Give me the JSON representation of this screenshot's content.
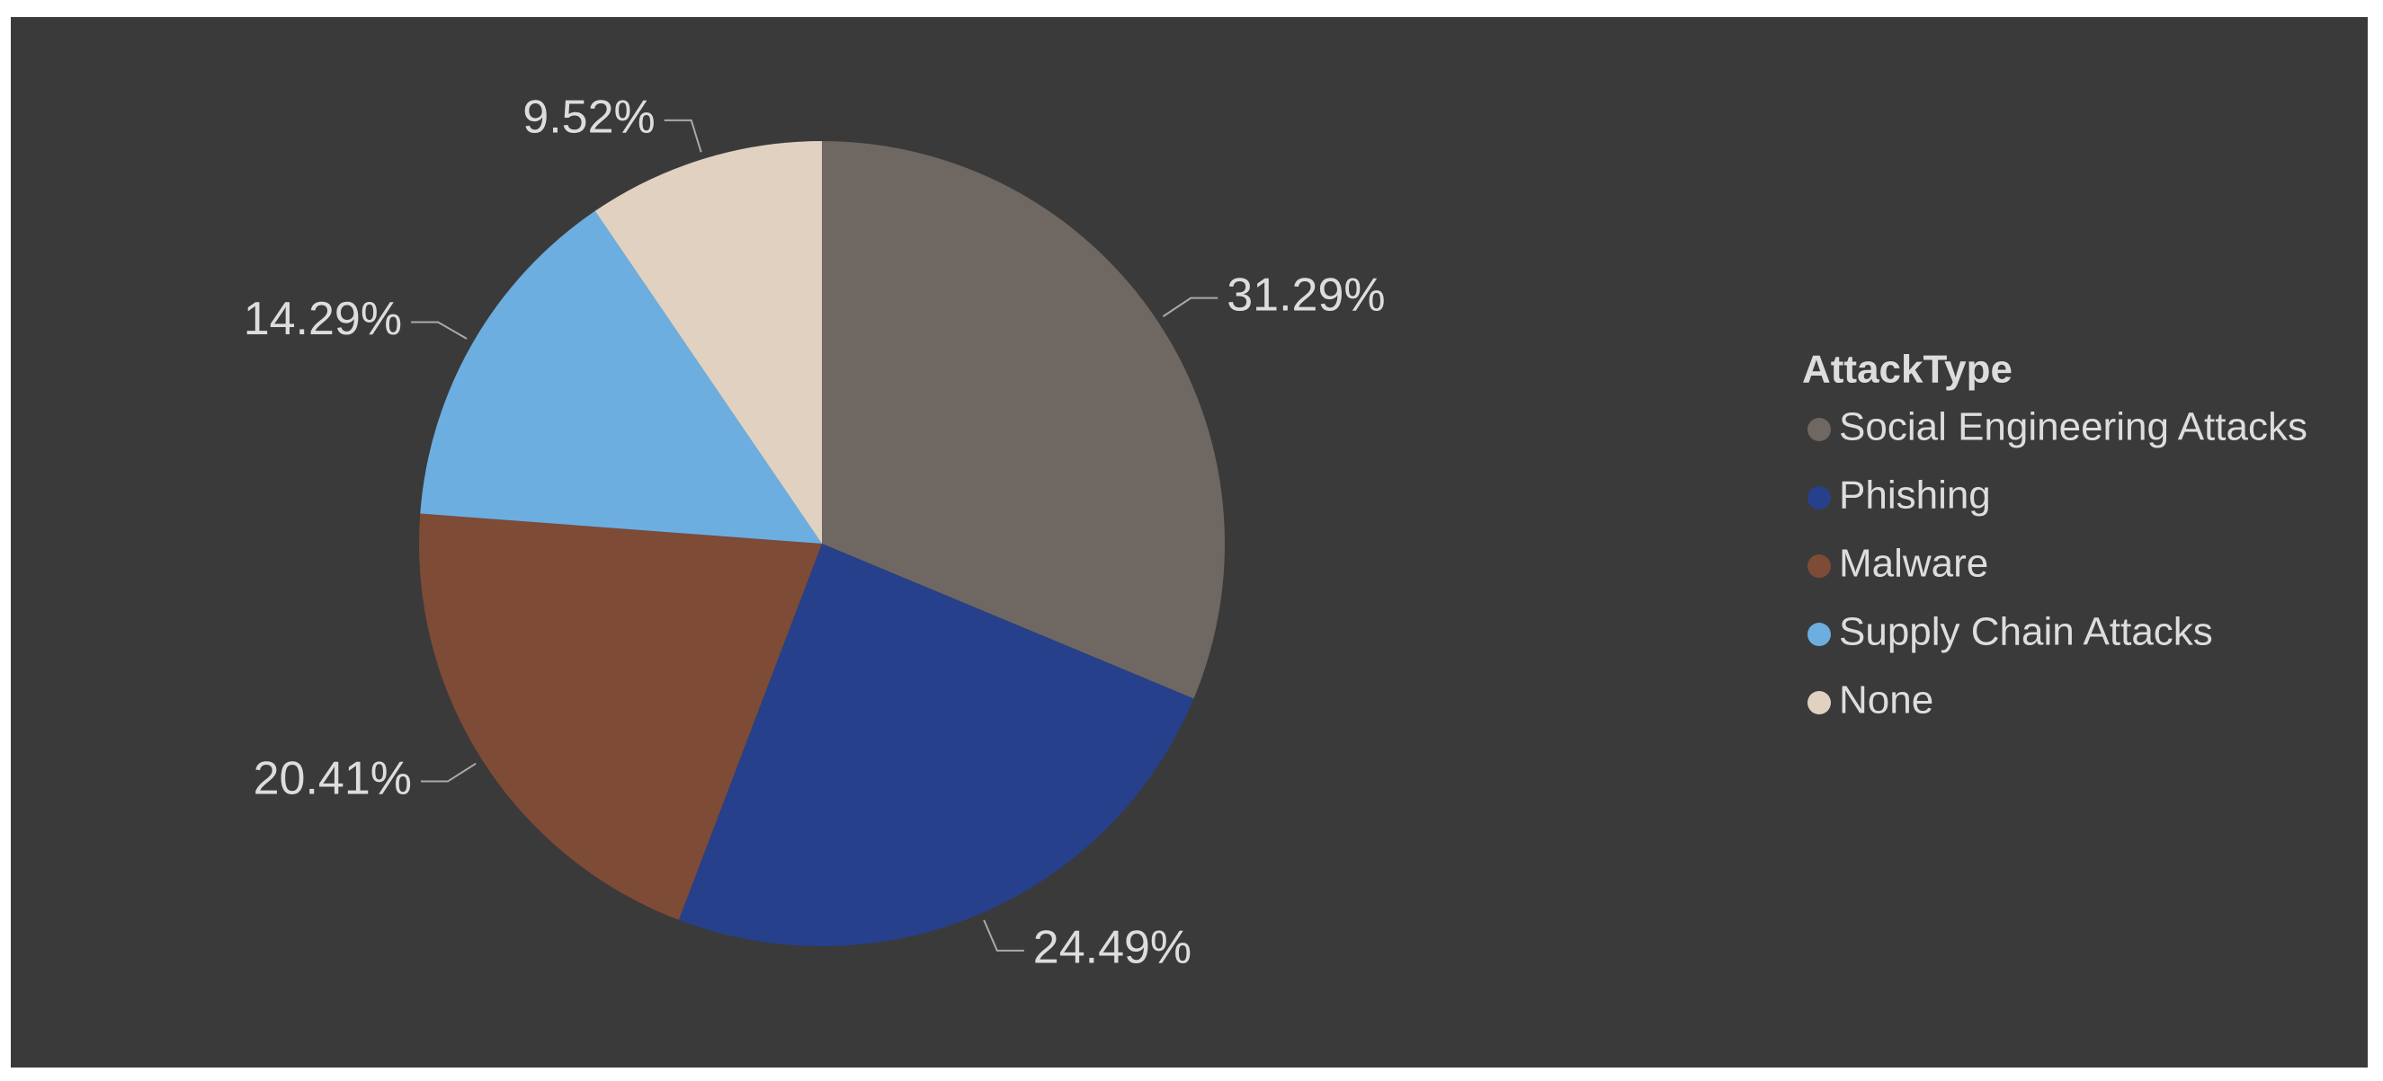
{
  "chart_data": {
    "type": "pie",
    "legend_title": "AttackType",
    "categories": [
      "Social Engineering Attacks",
      "Phishing",
      "Malware",
      "Supply Chain Attacks",
      "None"
    ],
    "values": [
      31.29,
      24.49,
      20.41,
      14.29,
      9.52
    ],
    "value_labels": [
      "31.29%",
      "24.49%",
      "20.41%",
      "14.29%",
      "9.52%"
    ],
    "colors": [
      "#6f6761",
      "#26408b",
      "#7e4b36",
      "#6caee0",
      "#e0d1c1"
    ]
  }
}
